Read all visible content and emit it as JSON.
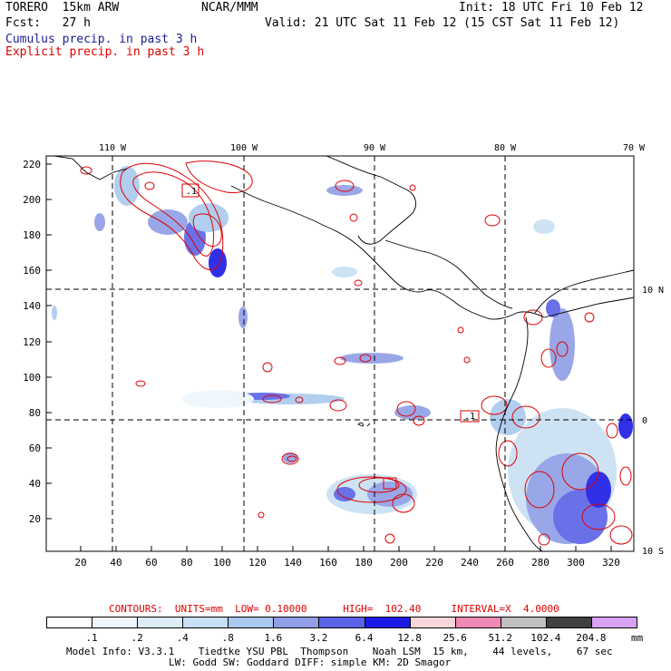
{
  "header": {
    "model": "TORERO  15km ARW",
    "org": "NCAR/MMM",
    "init": "Init: 18 UTC Fri 10 Feb 12",
    "fcst": "Fcst:   27 h",
    "valid": "Valid: 21 UTC Sat 11 Feb 12 (15 CST Sat 11 Feb 12)",
    "legend_cumulus": "Cumulus precip. in past 3 h",
    "legend_explicit": "Explicit precip. in past 3 h"
  },
  "map": {
    "top_lon_labels": [
      "110 W",
      "100 W",
      "90 W",
      "80 W",
      "70 W"
    ],
    "right_lat_labels": [
      "10 N",
      "0",
      "10 S"
    ],
    "left_ticks": [
      "220",
      "200",
      "180",
      "160",
      "140",
      "120",
      "100",
      "80",
      "60",
      "40",
      "20"
    ],
    "bottom_ticks": [
      "20",
      "40",
      "60",
      "80",
      "100",
      "120",
      "140",
      "160",
      "180",
      "200",
      "220",
      "240",
      "260",
      "280",
      "300",
      "320"
    ],
    "contour_labels": [
      ".1",
      ".1"
    ]
  },
  "contours_line": "CONTOURS:  UNITS=mm  LOW= 0.10000      HIGH=  102.40     INTERVAL=X  4.0000",
  "colorbar": {
    "labels": [
      ".1",
      ".2",
      ".4",
      ".8",
      "1.6",
      "3.2",
      "6.4",
      "12.8",
      "25.6",
      "51.2",
      "102.4",
      "204.8"
    ],
    "unit": "mm",
    "colors": [
      "#ffffff",
      "#eef6fc",
      "#dcedf8",
      "#c8e0f3",
      "#a9c9ee",
      "#8f9ee6",
      "#5a62e6",
      "#1a1ae6",
      "#f7d6da",
      "#ef88b4",
      "#c0c0c0",
      "#404040",
      "#d7a3f2"
    ]
  },
  "footer": {
    "line1": "Model Info: V3.3.1    Tiedtke YSU PBL  Thompson    Noah LSM  15 km,    44 levels,    67 sec",
    "line2": "LW: Godd SW: Goddard DIFF: simple KM: 2D Smagor"
  }
}
